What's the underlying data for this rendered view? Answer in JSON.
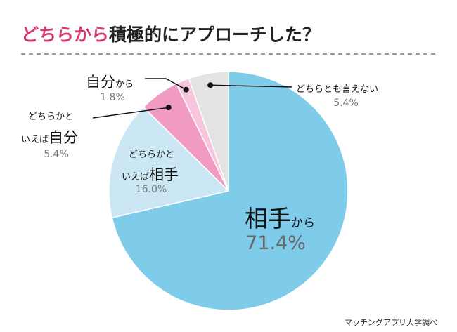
{
  "title": {
    "accent": "どちらから",
    "rest": "積極的にアプローチした？"
  },
  "chart_data": {
    "type": "pie",
    "slices": [
      {
        "key": "partner",
        "label_lines": [
          "相手から"
        ],
        "value": 71.4,
        "value_label": "71.4%",
        "color": "#7ecbea"
      },
      {
        "key": "rather_partner",
        "label_lines": [
          "どちらかと",
          "いえば相手"
        ],
        "value": 16.0,
        "value_label": "16.0%",
        "color": "#cbe7f3"
      },
      {
        "key": "rather_self",
        "label_lines": [
          "どちらかと",
          "いえば自分"
        ],
        "value": 5.4,
        "value_label": "5.4%",
        "color": "#f19bc2"
      },
      {
        "key": "self",
        "label_lines": [
          "自分から"
        ],
        "value": 1.8,
        "value_label": "1.8%",
        "color": "#f7c6dc"
      },
      {
        "key": "neither",
        "label_lines": [
          "どちらとも言えない"
        ],
        "value": 5.4,
        "value_label": "5.4%",
        "color": "#e3e3e3"
      }
    ]
  },
  "labels": {
    "partner_big": "相手",
    "partner_small": "から",
    "partner_pct": "71.4%",
    "rather_partner_line1": "どちらかと",
    "rather_partner_line2_small": "いえば",
    "rather_partner_line2_big": "相手",
    "rather_partner_pct": "16.0%",
    "rather_self_line1": "どちらかと",
    "rather_self_line2_small": "いえば",
    "rather_self_line2_big": "自分",
    "rather_self_pct": "5.4%",
    "self_big": "自分",
    "self_small": "から",
    "self_pct": "1.8%",
    "neither": "どちらとも言えない",
    "neither_pct": "5.4%"
  },
  "source": "マッチングアプリ大学調べ"
}
